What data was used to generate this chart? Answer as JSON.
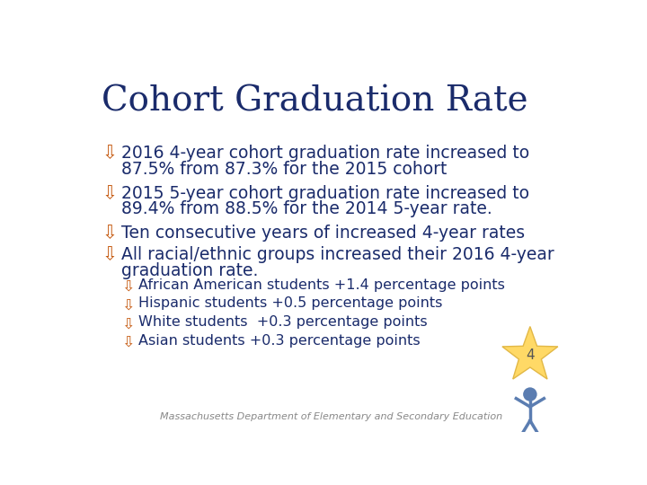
{
  "title": "Cohort Graduation Rate",
  "title_color": "#1a2b6b",
  "title_fontsize": 28,
  "background_color": "#FFFFFF",
  "bullet_color": "#C55A11",
  "bullet_char": "⇩",
  "main_text_color": "#1a2b6b",
  "main_fontsize": 13.5,
  "sub_fontsize": 11.5,
  "footer_text": "Massachusetts Department of Elementary and Secondary Education",
  "footer_color": "#888888",
  "footer_fontsize": 8,
  "page_number": "4",
  "page_number_color": "#555555",
  "page_number_fontsize": 11,
  "star_color": "#FFD966",
  "star_edge_color": "#E2B846",
  "figure_color": "#5B7DB1",
  "bullets": [
    {
      "level": 1,
      "line1": "2016 4-year cohort graduation rate increased to",
      "line2": "87.5% from 87.3% for the 2015 cohort"
    },
    {
      "level": 1,
      "line1": "2015 5-year cohort graduation rate increased to",
      "line2": "89.4% from 88.5% for the 2014 5-year rate."
    },
    {
      "level": 1,
      "line1": "Ten consecutive years of increased 4-year rates",
      "line2": ""
    },
    {
      "level": 1,
      "line1": "All racial/ethnic groups increased their 2016 4-year",
      "line2": "graduation rate."
    },
    {
      "level": 2,
      "line1": "African American students +1.4 percentage points",
      "line2": ""
    },
    {
      "level": 2,
      "line1": "Hispanic students +0.5 percentage points",
      "line2": ""
    },
    {
      "level": 2,
      "line1": "White students  +0.3 percentage points",
      "line2": ""
    },
    {
      "level": 2,
      "line1": "Asian students +0.3 percentage points",
      "line2": ""
    }
  ]
}
